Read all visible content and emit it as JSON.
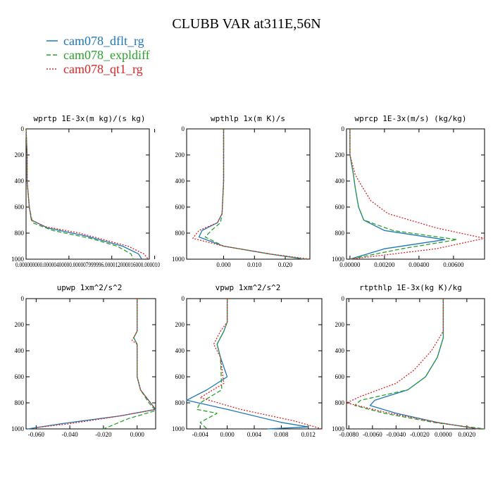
{
  "title": "CLUBB VAR at311E,56N",
  "legend": [
    {
      "label": "cam078_dflt_rg",
      "color": "#1f77b4",
      "dash": "solid"
    },
    {
      "label": "cam078_expldiff",
      "color": "#2ca02c",
      "dash": "dashed"
    },
    {
      "label": "cam078_qt1_rg",
      "color": "#d62728",
      "dash": "dotted"
    }
  ],
  "chart_data": [
    {
      "type": "line",
      "title": "wprtp  1E-3x(m kg)/(s kg)",
      "xlim": [
        0,
        1.15e-05
      ],
      "ylim": [
        1000,
        0
      ],
      "xticks": [
        0,
        4e-06,
        8e-06,
        1.2e-05
      ],
      "xticklabels": [
        "0.00000000",
        "0.00000400",
        "0.00000800",
        "0.0000120"
      ],
      "xticklabels_as_printed": "0.000000000.00000400000.000007999996.000012000016000.000010",
      "yticks": [
        0,
        200,
        400,
        600,
        800,
        1000
      ],
      "series": [
        {
          "name": "cam078_dflt_rg",
          "points": [
            [
              0,
              0
            ],
            [
              1e-07,
              200
            ],
            [
              1e-07,
              400
            ],
            [
              3e-07,
              600
            ],
            [
              5e-07,
              700
            ],
            [
              2e-06,
              760
            ],
            [
              5.5e-06,
              820
            ],
            [
              9e-06,
              900
            ],
            [
              1.05e-05,
              960
            ],
            [
              1.08e-05,
              1000
            ]
          ]
        },
        {
          "name": "cam078_expldiff",
          "points": [
            [
              0,
              0
            ],
            [
              1e-07,
              200
            ],
            [
              1e-07,
              400
            ],
            [
              3e-07,
              600
            ],
            [
              6e-07,
              720
            ],
            [
              2.5e-06,
              780
            ],
            [
              6e-06,
              840
            ],
            [
              8.5e-06,
              900
            ],
            [
              9.8e-06,
              960
            ],
            [
              1e-05,
              1000
            ]
          ]
        },
        {
          "name": "cam078_qt1_rg",
          "points": [
            [
              0,
              0
            ],
            [
              1e-07,
              200
            ],
            [
              1e-07,
              400
            ],
            [
              3e-07,
              600
            ],
            [
              5e-07,
              700
            ],
            [
              1.8e-06,
              750
            ],
            [
              5e-06,
              800
            ],
            [
              9.5e-06,
              900
            ],
            [
              1.1e-05,
              960
            ],
            [
              1.14e-05,
              1000
            ]
          ]
        }
      ]
    },
    {
      "type": "line",
      "title": "wpthlp  1x(m K)/s",
      "xlim": [
        -0.012,
        0.028
      ],
      "ylim": [
        1000,
        0
      ],
      "xticks": [
        0,
        0.01,
        0.02
      ],
      "xticklabels": [
        "0.000",
        "0.010",
        "0.020"
      ],
      "yticks": [
        0,
        200,
        400,
        600,
        800,
        1000
      ],
      "series": [
        {
          "name": "cam078_dflt_rg",
          "points": [
            [
              0,
              0
            ],
            [
              0,
              400
            ],
            [
              -0.0005,
              650
            ],
            [
              -0.002,
              720
            ],
            [
              -0.007,
              780
            ],
            [
              -0.008,
              830
            ],
            [
              0,
              900
            ],
            [
              0.015,
              960
            ],
            [
              0.026,
              1000
            ]
          ]
        },
        {
          "name": "cam078_expldiff",
          "points": [
            [
              0,
              0
            ],
            [
              0,
              400
            ],
            [
              -0.0005,
              650
            ],
            [
              -0.001,
              720
            ],
            [
              -0.004,
              780
            ],
            [
              -0.006,
              830
            ],
            [
              0,
              900
            ],
            [
              0.015,
              960
            ],
            [
              0.027,
              1000
            ]
          ]
        },
        {
          "name": "cam078_qt1_rg",
          "points": [
            [
              0,
              0
            ],
            [
              0,
              400
            ],
            [
              -0.0005,
              650
            ],
            [
              -0.002,
              720
            ],
            [
              -0.008,
              780
            ],
            [
              -0.01,
              840
            ],
            [
              0,
              900
            ],
            [
              0.015,
              960
            ],
            [
              0.028,
              1000
            ]
          ]
        }
      ]
    },
    {
      "type": "line",
      "title": "wprcp  1E-3x(m/s) (kg/kg)",
      "xlim": [
        -0.0002,
        0.0078
      ],
      "ylim": [
        1000,
        0
      ],
      "xticks": [
        0,
        0.002,
        0.004,
        0.006
      ],
      "xticklabels": [
        "0.00000",
        "0.00200",
        "0.00400",
        "0.00600"
      ],
      "yticks": [
        0,
        200,
        400,
        600,
        800,
        1000
      ],
      "series": [
        {
          "name": "cam078_dflt_rg",
          "points": [
            [
              0,
              0
            ],
            [
              0,
              200
            ],
            [
              0.0002,
              350
            ],
            [
              0.0003,
              450
            ],
            [
              0.0005,
              600
            ],
            [
              0.0008,
              700
            ],
            [
              0.002,
              780
            ],
            [
              0.0055,
              850
            ],
            [
              0.002,
              920
            ],
            [
              0,
              1000
            ]
          ]
        },
        {
          "name": "cam078_expldiff",
          "points": [
            [
              0,
              0
            ],
            [
              0,
              200
            ],
            [
              0.0002,
              350
            ],
            [
              0.0003,
              450
            ],
            [
              0.0005,
              600
            ],
            [
              0.0008,
              700
            ],
            [
              0.0025,
              780
            ],
            [
              0.0062,
              850
            ],
            [
              0.003,
              920
            ],
            [
              0,
              1000
            ]
          ]
        },
        {
          "name": "cam078_qt1_rg",
          "points": [
            [
              0,
              0
            ],
            [
              0,
              200
            ],
            [
              0.0003,
              350
            ],
            [
              0.0006,
              420
            ],
            [
              0.0012,
              550
            ],
            [
              0.0022,
              650
            ],
            [
              0.005,
              760
            ],
            [
              0.0078,
              840
            ],
            [
              0.005,
              920
            ],
            [
              0,
              1000
            ]
          ]
        }
      ]
    },
    {
      "type": "line",
      "title": "upwp  1xm^2/s^2",
      "xlim": [
        -0.066,
        0.011
      ],
      "ylim": [
        1000,
        0
      ],
      "xticks": [
        -0.06,
        -0.04,
        -0.02,
        0
      ],
      "xticklabels": [
        "-0.060",
        "-0.040",
        "-0.020",
        "0.000"
      ],
      "yticks": [
        0,
        200,
        400,
        600,
        800,
        1000
      ],
      "series": [
        {
          "name": "cam078_dflt_rg",
          "points": [
            [
              0,
              0
            ],
            [
              0,
              250
            ],
            [
              -0.002,
              300
            ],
            [
              0,
              350
            ],
            [
              0,
              600
            ],
            [
              0.002,
              700
            ],
            [
              0.008,
              800
            ],
            [
              0.011,
              850
            ],
            [
              -0.01,
              900
            ],
            [
              -0.045,
              960
            ],
            [
              -0.065,
              1000
            ]
          ]
        },
        {
          "name": "cam078_expldiff",
          "points": [
            [
              0,
              0
            ],
            [
              0,
              250
            ],
            [
              -0.002,
              300
            ],
            [
              0,
              350
            ],
            [
              0,
              600
            ],
            [
              0.002,
              700
            ],
            [
              0.007,
              800
            ],
            [
              0.011,
              860
            ],
            [
              -0.005,
              920
            ],
            [
              -0.02,
              1000
            ]
          ]
        },
        {
          "name": "cam078_qt1_rg",
          "points": [
            [
              0,
              0
            ],
            [
              0,
              250
            ],
            [
              -0.003,
              320
            ],
            [
              0,
              350
            ],
            [
              0,
              600
            ],
            [
              0.002,
              700
            ],
            [
              0.008,
              800
            ],
            [
              0.011,
              850
            ],
            [
              -0.01,
              900
            ],
            [
              -0.04,
              960
            ],
            [
              -0.06,
              990
            ]
          ]
        }
      ]
    },
    {
      "type": "line",
      "title": "vpwp  1xm^2/s^2",
      "xlim": [
        -0.006,
        0.014
      ],
      "ylim": [
        1000,
        0
      ],
      "xticks": [
        -0.004,
        0,
        0.004,
        0.008,
        0.012
      ],
      "xticklabels": [
        "-0.004",
        "0.000",
        "0.004",
        "0.008",
        "0.012"
      ],
      "yticks": [
        0,
        200,
        400,
        600,
        800,
        1000
      ],
      "series": [
        {
          "name": "cam078_dflt_rg",
          "points": [
            [
              0,
              0
            ],
            [
              0,
              180
            ],
            [
              -0.0005,
              250
            ],
            [
              -0.0015,
              350
            ],
            [
              -0.001,
              450
            ],
            [
              0,
              600
            ],
            [
              -0.003,
              700
            ],
            [
              -0.006,
              780
            ],
            [
              0,
              850
            ],
            [
              0.008,
              950
            ],
            [
              0.012,
              985
            ],
            [
              0.006,
              1000
            ]
          ]
        },
        {
          "name": "cam078_expldiff",
          "points": [
            [
              0,
              0
            ],
            [
              0,
              180
            ],
            [
              -0.0005,
              250
            ],
            [
              -0.0015,
              350
            ],
            [
              -0.001,
              450
            ],
            [
              -0.0008,
              700
            ],
            [
              -0.004,
              800
            ],
            [
              -0.0045,
              850
            ],
            [
              -0.0015,
              880
            ],
            [
              -0.004,
              950
            ],
            [
              -0.003,
              1000
            ]
          ]
        },
        {
          "name": "cam078_qt1_rg",
          "points": [
            [
              0,
              0
            ],
            [
              0,
              180
            ],
            [
              -0.001,
              250
            ],
            [
              -0.002,
              350
            ],
            [
              -0.001,
              450
            ],
            [
              -0.0005,
              650
            ],
            [
              -0.004,
              760
            ],
            [
              0.002,
              850
            ],
            [
              0.01,
              940
            ],
            [
              0.014,
              1000
            ]
          ]
        }
      ]
    },
    {
      "type": "line",
      "title": "rtpthlp  1E-3x(kg K)/kg",
      "xlim": [
        -0.0082,
        0.0035
      ],
      "ylim": [
        1000,
        0
      ],
      "xticks": [
        -0.008,
        -0.006,
        -0.004,
        -0.002,
        0,
        0.002
      ],
      "xticklabels": [
        "-0.0080",
        "-0.0060",
        "-0.0040",
        "-0.0020",
        "0.0000",
        "0.0020"
      ],
      "yticks": [
        0,
        200,
        400,
        600,
        800,
        1000
      ],
      "series": [
        {
          "name": "cam078_dflt_rg",
          "points": [
            [
              0,
              0
            ],
            [
              0,
              300
            ],
            [
              -0.0005,
              450
            ],
            [
              -0.0015,
              600
            ],
            [
              -0.003,
              700
            ],
            [
              -0.0058,
              780
            ],
            [
              -0.0062,
              820
            ],
            [
              -0.004,
              880
            ],
            [
              -0.0005,
              950
            ],
            [
              0.003,
              1000
            ]
          ]
        },
        {
          "name": "cam078_expldiff",
          "points": [
            [
              0,
              0
            ],
            [
              0,
              300
            ],
            [
              -0.0005,
              450
            ],
            [
              -0.0015,
              600
            ],
            [
              -0.003,
              700
            ],
            [
              -0.007,
              780
            ],
            [
              -0.0075,
              820
            ],
            [
              -0.005,
              880
            ],
            [
              -0.0008,
              950
            ],
            [
              0.0035,
              1000
            ]
          ]
        },
        {
          "name": "cam078_qt1_rg",
          "points": [
            [
              0,
              0
            ],
            [
              0,
              250
            ],
            [
              -0.001,
              400
            ],
            [
              -0.0025,
              550
            ],
            [
              -0.004,
              650
            ],
            [
              -0.007,
              750
            ],
            [
              -0.0082,
              800
            ],
            [
              -0.005,
              870
            ],
            [
              -0.0005,
              950
            ],
            [
              0.003,
              1000
            ]
          ]
        }
      ]
    }
  ]
}
